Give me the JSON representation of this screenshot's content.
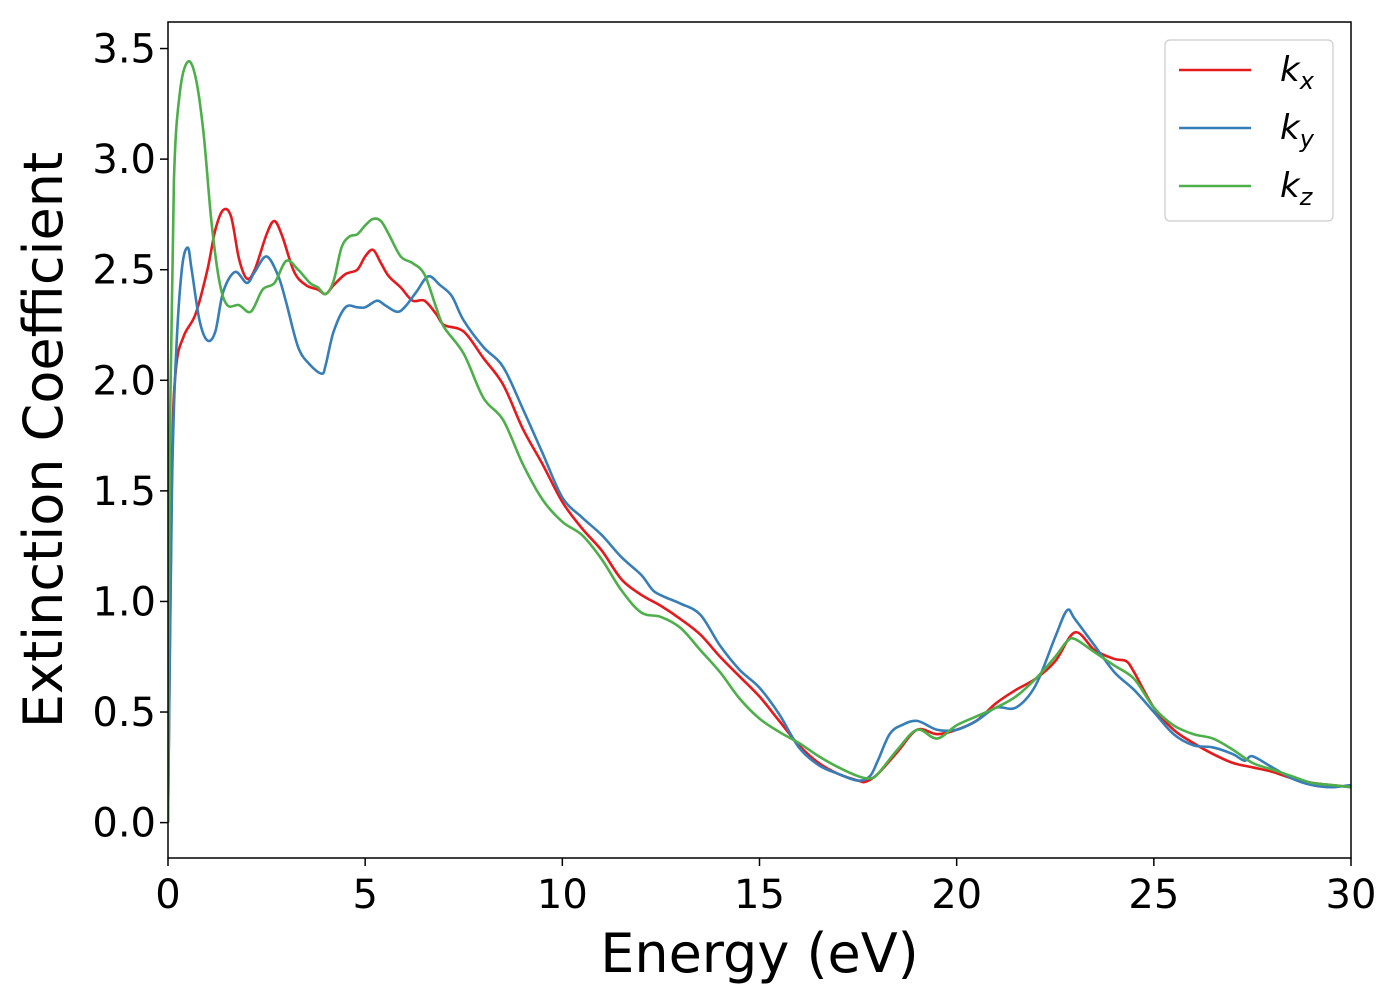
{
  "chart_data": {
    "type": "line",
    "xlabel": "Energy (eV)",
    "ylabel": "Extinction Coefficient",
    "xlim": [
      0,
      30
    ],
    "ylim": [
      -0.16,
      3.62
    ],
    "xticks": [
      "0",
      "5",
      "10",
      "15",
      "20",
      "25",
      "30"
    ],
    "yticks": [
      "0.0",
      "0.5",
      "1.0",
      "1.5",
      "2.0",
      "2.5",
      "3.0",
      "3.5"
    ],
    "grid": false,
    "legend_position": "top-right",
    "series": [
      {
        "name": "k",
        "subscript": "x",
        "color": "#e41a1c",
        "x": [
          0,
          0.1,
          0.2,
          0.4,
          0.7,
          1.0,
          1.2,
          1.4,
          1.6,
          1.8,
          2.0,
          2.2,
          2.5,
          2.7,
          2.9,
          3.2,
          3.5,
          3.8,
          4.0,
          4.2,
          4.5,
          4.8,
          5.0,
          5.2,
          5.4,
          5.6,
          5.9,
          6.2,
          6.5,
          6.8,
          7.0,
          7.5,
          8.0,
          8.5,
          9.0,
          9.5,
          10.0,
          10.5,
          11.0,
          11.5,
          12.0,
          12.5,
          13.0,
          13.5,
          14.0,
          14.5,
          15.0,
          15.5,
          16.0,
          16.5,
          17.0,
          17.5,
          17.7,
          18.0,
          18.5,
          19.0,
          19.5,
          20.0,
          20.5,
          21.0,
          21.5,
          22.0,
          22.5,
          23.0,
          23.5,
          24.0,
          24.3,
          24.5,
          25.0,
          25.5,
          26.0,
          26.5,
          27.0,
          27.5,
          28.0,
          28.5,
          29.0,
          29.5,
          30.0
        ],
        "values": [
          0.0,
          1.6,
          2.05,
          2.2,
          2.3,
          2.5,
          2.68,
          2.77,
          2.74,
          2.55,
          2.46,
          2.5,
          2.66,
          2.72,
          2.65,
          2.49,
          2.43,
          2.41,
          2.39,
          2.43,
          2.48,
          2.5,
          2.56,
          2.59,
          2.53,
          2.47,
          2.42,
          2.36,
          2.36,
          2.3,
          2.25,
          2.22,
          2.1,
          1.98,
          1.78,
          1.62,
          1.45,
          1.33,
          1.23,
          1.1,
          1.03,
          0.98,
          0.92,
          0.85,
          0.75,
          0.66,
          0.57,
          0.46,
          0.35,
          0.27,
          0.22,
          0.19,
          0.185,
          0.22,
          0.32,
          0.42,
          0.4,
          0.42,
          0.46,
          0.54,
          0.6,
          0.65,
          0.73,
          0.86,
          0.78,
          0.74,
          0.73,
          0.68,
          0.52,
          0.42,
          0.36,
          0.31,
          0.27,
          0.25,
          0.23,
          0.2,
          0.18,
          0.17,
          0.16
        ]
      },
      {
        "name": "k",
        "subscript": "y",
        "color": "#377eb8",
        "x": [
          0,
          0.1,
          0.2,
          0.35,
          0.5,
          0.6,
          0.8,
          1.0,
          1.2,
          1.4,
          1.7,
          2.0,
          2.2,
          2.5,
          2.8,
          3.0,
          3.3,
          3.6,
          3.9,
          4.0,
          4.2,
          4.5,
          4.8,
          5.0,
          5.3,
          5.5,
          5.8,
          6.0,
          6.3,
          6.6,
          6.9,
          7.2,
          7.5,
          8.0,
          8.5,
          9.0,
          9.5,
          10.0,
          10.5,
          11.0,
          11.5,
          12.0,
          12.3,
          12.6,
          13.0,
          13.5,
          14.0,
          14.5,
          15.0,
          15.5,
          16.0,
          16.5,
          17.0,
          17.5,
          17.8,
          18.0,
          18.3,
          18.6,
          19.0,
          19.5,
          20.0,
          20.5,
          21.0,
          21.5,
          22.0,
          22.5,
          22.8,
          23.0,
          23.5,
          24.0,
          24.5,
          25.0,
          25.5,
          26.0,
          26.5,
          27.0,
          27.3,
          27.5,
          28.0,
          28.5,
          29.0,
          29.5,
          30.0
        ],
        "values": [
          0.0,
          1.5,
          2.1,
          2.5,
          2.6,
          2.5,
          2.27,
          2.18,
          2.22,
          2.4,
          2.49,
          2.44,
          2.49,
          2.56,
          2.47,
          2.35,
          2.15,
          2.07,
          2.03,
          2.07,
          2.22,
          2.33,
          2.33,
          2.33,
          2.36,
          2.34,
          2.31,
          2.33,
          2.4,
          2.47,
          2.43,
          2.38,
          2.27,
          2.15,
          2.06,
          1.87,
          1.67,
          1.47,
          1.38,
          1.3,
          1.2,
          1.12,
          1.05,
          1.02,
          0.99,
          0.94,
          0.8,
          0.69,
          0.61,
          0.49,
          0.34,
          0.26,
          0.22,
          0.19,
          0.21,
          0.28,
          0.4,
          0.44,
          0.46,
          0.42,
          0.42,
          0.46,
          0.52,
          0.52,
          0.62,
          0.84,
          0.96,
          0.92,
          0.8,
          0.68,
          0.6,
          0.5,
          0.4,
          0.35,
          0.34,
          0.31,
          0.28,
          0.3,
          0.25,
          0.2,
          0.17,
          0.16,
          0.17
        ]
      },
      {
        "name": "k",
        "subscript": "z",
        "color": "#4daf4a",
        "x": [
          0,
          0.05,
          0.15,
          0.3,
          0.5,
          0.7,
          0.9,
          1.1,
          1.3,
          1.5,
          1.8,
          2.1,
          2.4,
          2.7,
          3.0,
          3.3,
          3.6,
          3.8,
          4.0,
          4.2,
          4.4,
          4.6,
          4.8,
          5.0,
          5.2,
          5.4,
          5.6,
          5.9,
          6.2,
          6.5,
          6.8,
          7.0,
          7.5,
          8.0,
          8.5,
          9.0,
          9.5,
          10.0,
          10.5,
          11.0,
          11.5,
          12.0,
          12.5,
          13.0,
          13.5,
          14.0,
          14.5,
          15.0,
          15.5,
          16.0,
          16.5,
          17.0,
          17.5,
          17.8,
          18.0,
          18.5,
          19.0,
          19.5,
          20.0,
          20.5,
          21.0,
          21.5,
          22.0,
          22.5,
          22.8,
          23.0,
          23.5,
          24.0,
          24.5,
          25.0,
          25.5,
          26.0,
          26.5,
          27.0,
          27.5,
          28.0,
          28.5,
          29.0,
          29.5,
          30.0
        ],
        "values": [
          0.0,
          1.8,
          2.9,
          3.3,
          3.44,
          3.37,
          3.12,
          2.72,
          2.45,
          2.34,
          2.34,
          2.31,
          2.41,
          2.44,
          2.54,
          2.5,
          2.44,
          2.42,
          2.39,
          2.45,
          2.6,
          2.65,
          2.66,
          2.7,
          2.73,
          2.72,
          2.66,
          2.56,
          2.53,
          2.48,
          2.33,
          2.24,
          2.12,
          1.92,
          1.82,
          1.62,
          1.46,
          1.36,
          1.3,
          1.19,
          1.05,
          0.95,
          0.93,
          0.88,
          0.78,
          0.68,
          0.56,
          0.47,
          0.41,
          0.36,
          0.3,
          0.25,
          0.21,
          0.2,
          0.22,
          0.33,
          0.42,
          0.38,
          0.44,
          0.48,
          0.52,
          0.57,
          0.65,
          0.75,
          0.82,
          0.83,
          0.77,
          0.71,
          0.65,
          0.52,
          0.44,
          0.4,
          0.38,
          0.33,
          0.27,
          0.24,
          0.21,
          0.18,
          0.17,
          0.16
        ]
      }
    ]
  }
}
